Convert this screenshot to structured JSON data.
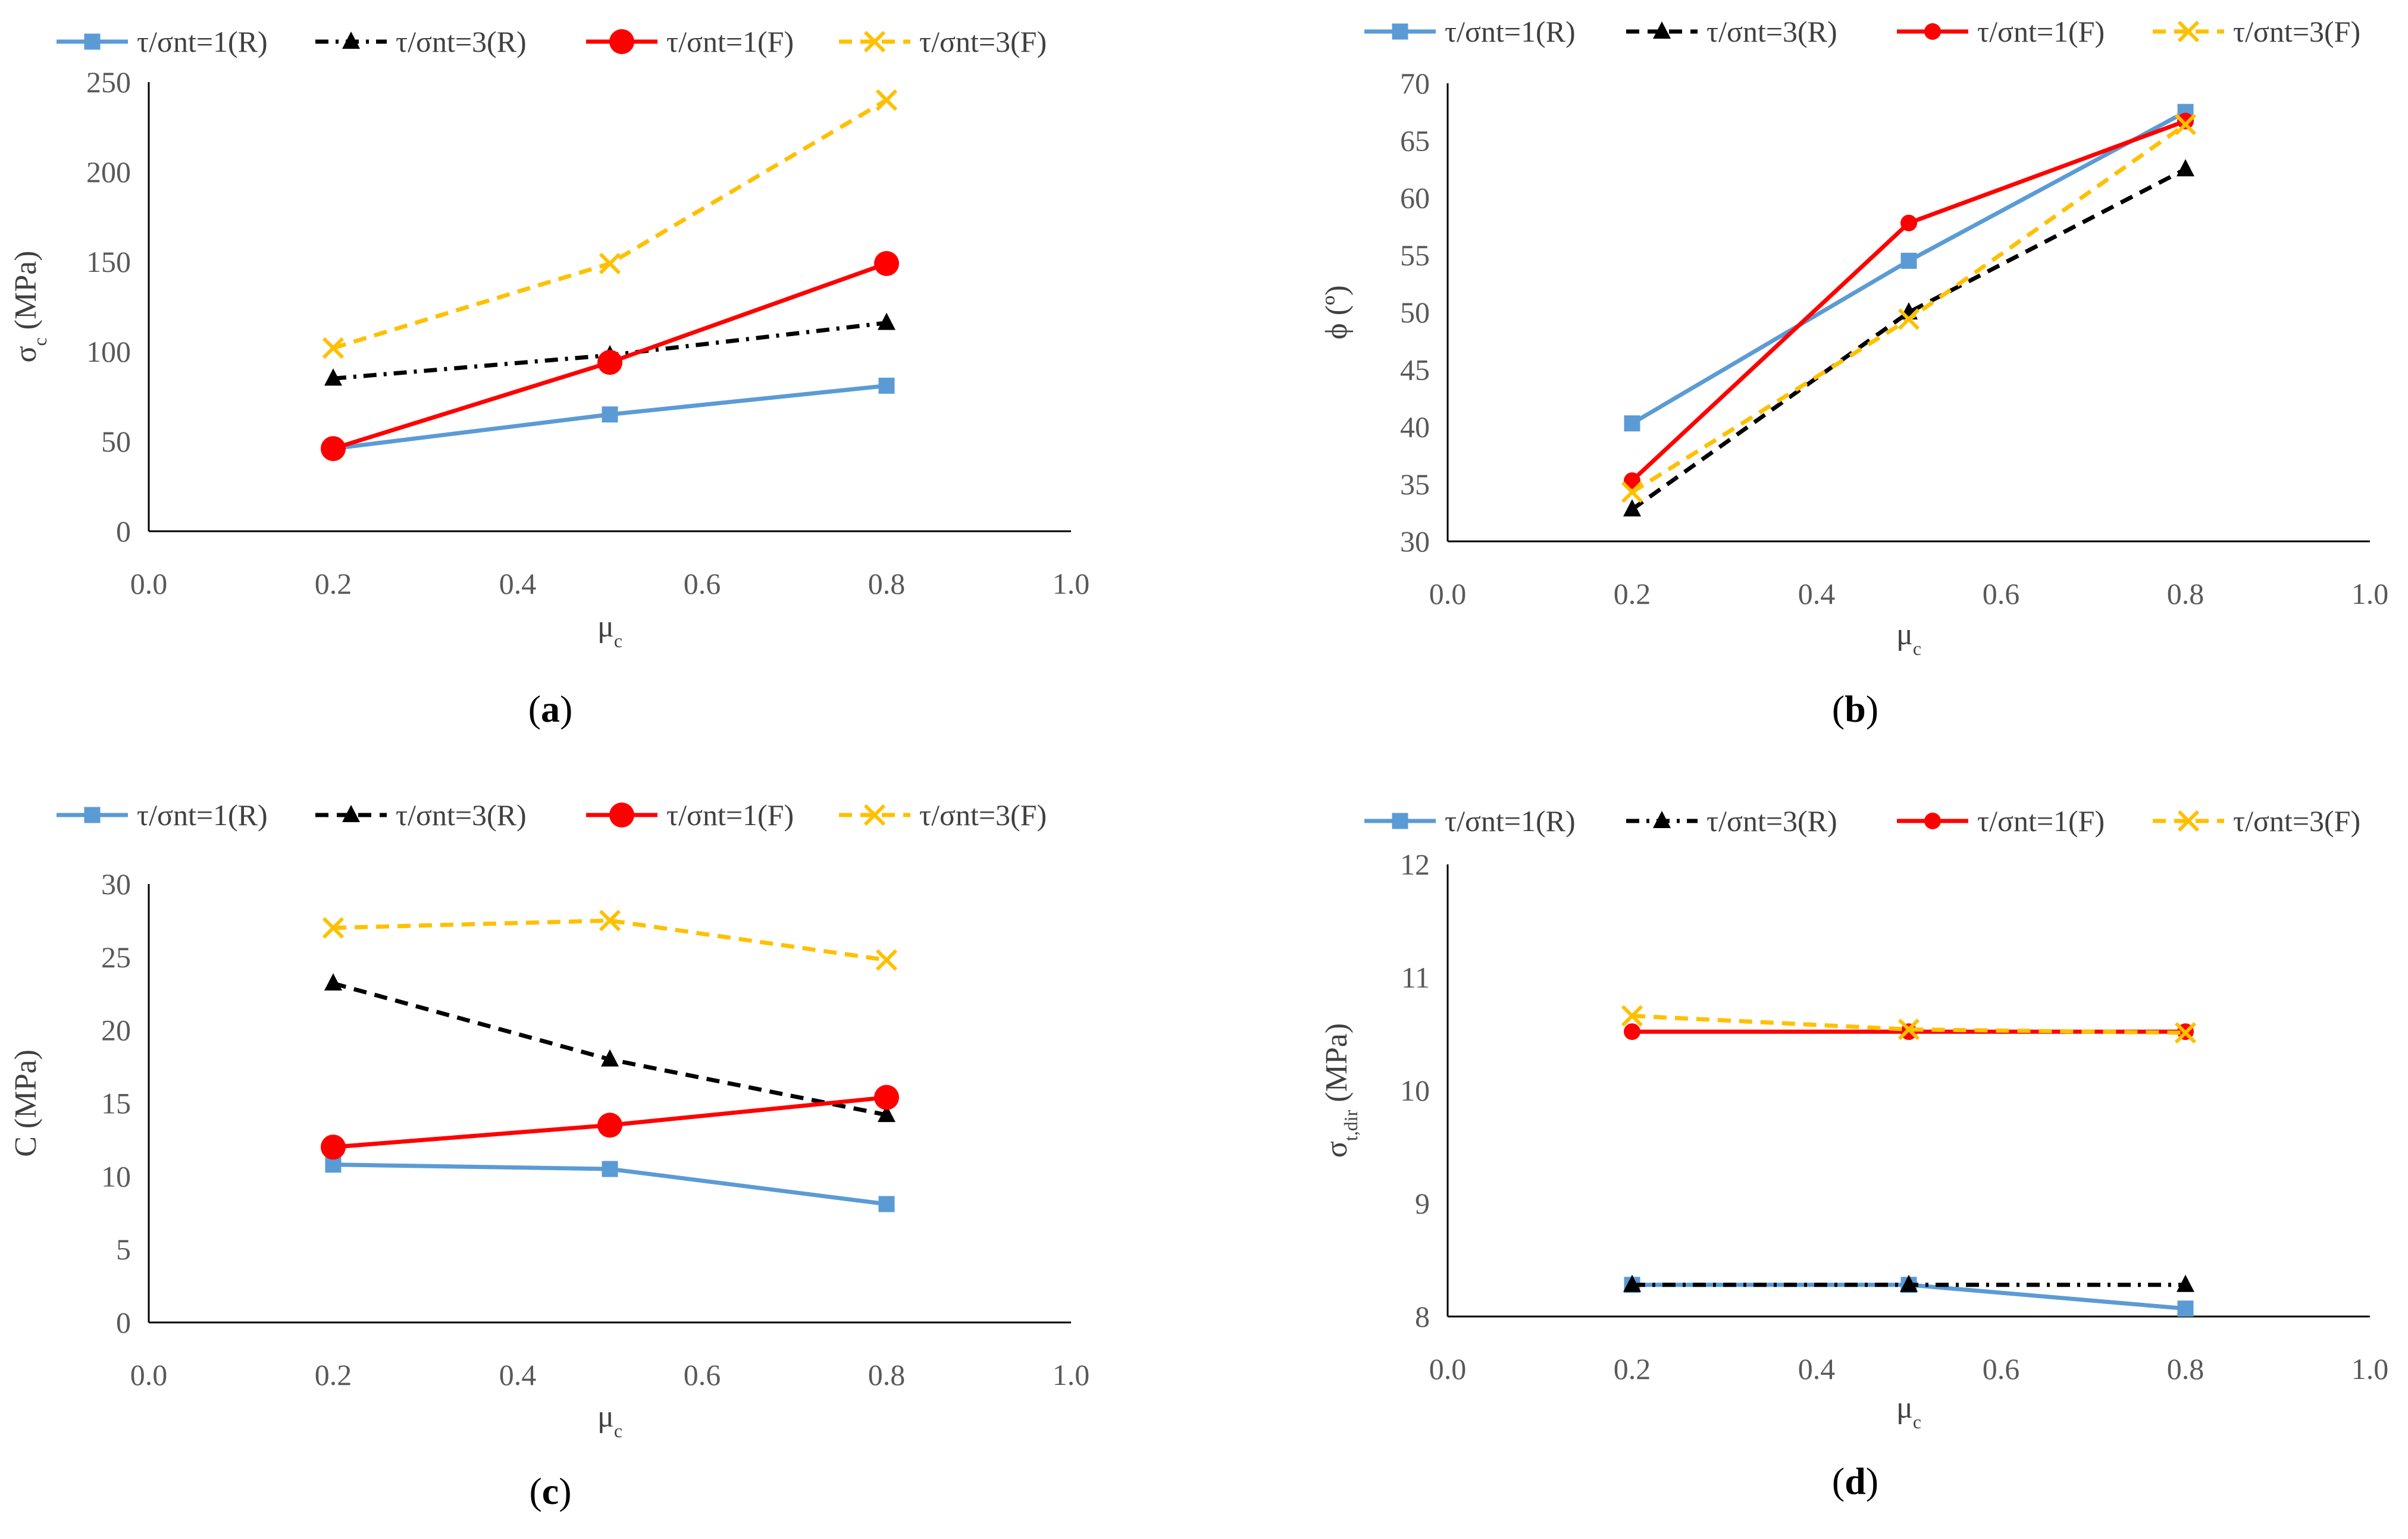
{
  "chart_data": [
    {
      "id": "a",
      "type": "line",
      "caption": {
        "open": "(",
        "letter": "a",
        "close": ")"
      },
      "xlabel": {
        "base": "μ",
        "sub": "c"
      },
      "ylabel": {
        "base": "σ",
        "sub": "c",
        "suffix": " (MPa)"
      },
      "xlim": [
        0,
        1.0
      ],
      "ylim": [
        0,
        250
      ],
      "xticks": [
        "0.0",
        "0.2",
        "0.4",
        "0.6",
        "0.8",
        "1.0"
      ],
      "yticks": [
        "0",
        "50",
        "100",
        "150",
        "200",
        "250"
      ],
      "x": [
        0.2,
        0.5,
        0.8
      ],
      "series": [
        {
          "name": "τ/σnt=1(R)",
          "color": "#5B9BD5",
          "dash": "solid",
          "marker": "square",
          "values": [
            46,
            65,
            81
          ]
        },
        {
          "name": "τ/σnt=3(R)",
          "color": "#000000",
          "dash": "dashdot",
          "marker": "triangle",
          "values": [
            85,
            98,
            116
          ]
        },
        {
          "name": "τ/σnt=1(F)",
          "color": "#FF0000",
          "dash": "solid",
          "marker": "circle-large",
          "values": [
            46,
            94,
            149
          ]
        },
        {
          "name": "τ/σnt=3(F)",
          "color": "#FFC000",
          "dash": "dash",
          "marker": "x",
          "values": [
            102,
            149,
            240
          ]
        }
      ]
    },
    {
      "id": "b",
      "type": "line",
      "caption": {
        "open": "(",
        "letter": "b",
        "close": ")"
      },
      "xlabel": {
        "base": "μ",
        "sub": "c"
      },
      "ylabel": {
        "base": "ϕ",
        "sub": "",
        "suffix": " (º)"
      },
      "xlim": [
        0,
        1.0
      ],
      "ylim": [
        30,
        70
      ],
      "xticks": [
        "0.0",
        "0.2",
        "0.4",
        "0.6",
        "0.8",
        "1.0"
      ],
      "yticks": [
        "30",
        "35",
        "40",
        "45",
        "50",
        "55",
        "60",
        "65",
        "70"
      ],
      "x": [
        0.2,
        0.5,
        0.8
      ],
      "series": [
        {
          "name": "τ/σnt=1(R)",
          "color": "#5B9BD5",
          "dash": "solid",
          "marker": "square",
          "values": [
            40.3,
            54.5,
            67.5
          ]
        },
        {
          "name": "τ/σnt=3(R)",
          "color": "#000000",
          "dash": "dash",
          "marker": "triangle",
          "values": [
            32.8,
            50.0,
            62.5
          ]
        },
        {
          "name": "τ/σnt=1(F)",
          "color": "#FF0000",
          "dash": "solid",
          "marker": "circle",
          "values": [
            35.3,
            57.8,
            66.7
          ]
        },
        {
          "name": "τ/σnt=3(F)",
          "color": "#FFC000",
          "dash": "dash",
          "marker": "x",
          "values": [
            34.3,
            49.4,
            66.4
          ]
        }
      ]
    },
    {
      "id": "c",
      "type": "line",
      "caption": {
        "open": "(",
        "letter": "c",
        "close": ")"
      },
      "xlabel": {
        "base": "μ",
        "sub": "c"
      },
      "ylabel": {
        "base": "C",
        "sub": "",
        "suffix": " (MPa)"
      },
      "xlim": [
        0,
        1.0
      ],
      "ylim": [
        0,
        30
      ],
      "xticks": [
        "0.0",
        "0.2",
        "0.4",
        "0.6",
        "0.8",
        "1.0"
      ],
      "yticks": [
        "0",
        "5",
        "10",
        "15",
        "20",
        "25",
        "30"
      ],
      "x": [
        0.2,
        0.5,
        0.8
      ],
      "series": [
        {
          "name": "τ/σnt=1(R)",
          "color": "#5B9BD5",
          "dash": "solid",
          "marker": "square",
          "values": [
            10.8,
            10.5,
            8.1
          ]
        },
        {
          "name": "τ/σnt=3(R)",
          "color": "#000000",
          "dash": "dash",
          "marker": "triangle",
          "values": [
            23.2,
            18.0,
            14.2
          ]
        },
        {
          "name": "τ/σnt=1(F)",
          "color": "#FF0000",
          "dash": "solid",
          "marker": "circle-large",
          "values": [
            12.0,
            13.5,
            15.4
          ]
        },
        {
          "name": "τ/σnt=3(F)",
          "color": "#FFC000",
          "dash": "dash",
          "marker": "x",
          "values": [
            27.0,
            27.5,
            24.8
          ]
        }
      ]
    },
    {
      "id": "d",
      "type": "line",
      "caption": {
        "open": "(",
        "letter": "d",
        "close": ")"
      },
      "xlabel": {
        "base": "μ",
        "sub": "c"
      },
      "ylabel": {
        "base": "σ",
        "sub": "t,dir",
        "suffix": " (MPa)"
      },
      "xlim": [
        0,
        1.0
      ],
      "ylim": [
        8,
        12
      ],
      "xticks": [
        "0.0",
        "0.2",
        "0.4",
        "0.6",
        "0.8",
        "1.0"
      ],
      "yticks": [
        "8",
        "9",
        "10",
        "11",
        "12"
      ],
      "x": [
        0.2,
        0.5,
        0.8
      ],
      "series": [
        {
          "name": "τ/σnt=1(R)",
          "color": "#5B9BD5",
          "dash": "solid",
          "marker": "square",
          "values": [
            8.28,
            8.28,
            8.07
          ]
        },
        {
          "name": "τ/σnt=3(R)",
          "color": "#000000",
          "dash": "dashdot",
          "marker": "triangle",
          "values": [
            8.28,
            8.28,
            8.28
          ]
        },
        {
          "name": "τ/σnt=1(F)",
          "color": "#FF0000",
          "dash": "solid",
          "marker": "circle",
          "values": [
            10.52,
            10.52,
            10.52
          ]
        },
        {
          "name": "τ/σnt=3(F)",
          "color": "#FFC000",
          "dash": "dash",
          "marker": "x",
          "values": [
            10.66,
            10.54,
            10.51
          ]
        }
      ]
    }
  ]
}
